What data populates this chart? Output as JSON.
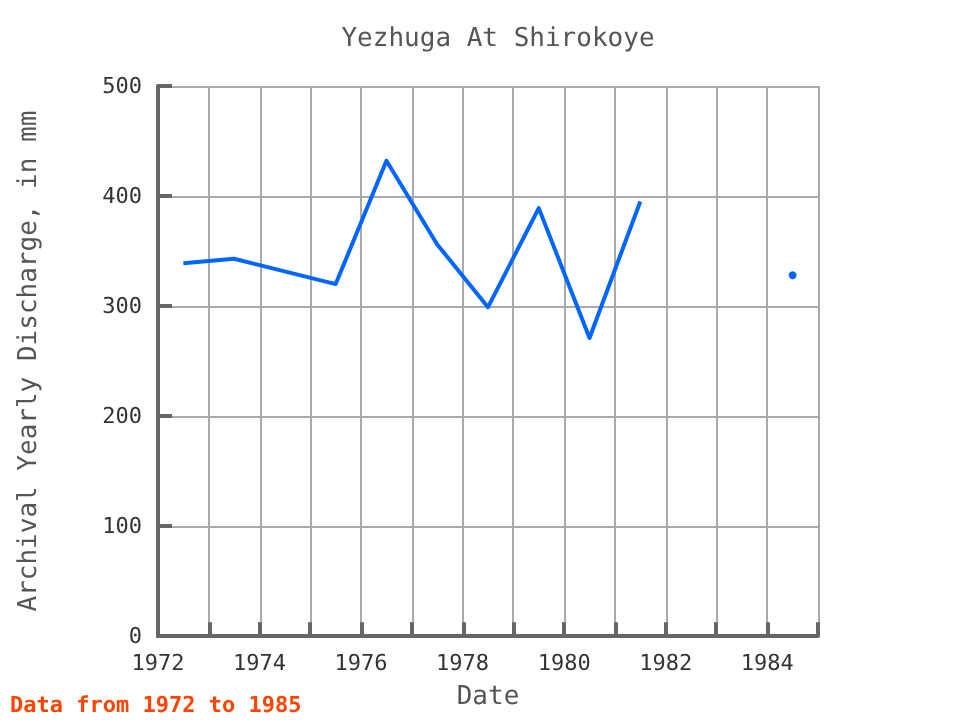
{
  "chart_data": {
    "type": "line",
    "title": "Yezhuga At Shirokoye",
    "xlabel": "Date",
    "ylabel": "Archival Yearly Discharge, in mm",
    "x": [
      1972.5,
      1973.5,
      1975.5,
      1976.5,
      1977.5,
      1978.5,
      1979.5,
      1980.5,
      1981.5,
      1982.5,
      1983.5,
      1984.5
    ],
    "series": [
      {
        "color": "#0066ff",
        "values": [
          339,
          343,
          320,
          432,
          356,
          299,
          389,
          271,
          395,
          null,
          null,
          328
        ]
      }
    ],
    "xlim": [
      1972,
      1985
    ],
    "xticks": [
      1972,
      {
        "value": 1973,
        "label": null
      },
      1974,
      {
        "value": 1975,
        "label": null
      },
      1976,
      {
        "value": 1977,
        "label": null
      },
      1978,
      {
        "value": 1979,
        "label": null
      },
      1980,
      {
        "value": 1981,
        "label": null
      },
      1982,
      {
        "value": 1983,
        "label": null
      },
      1984,
      {
        "value": 1985,
        "label": null
      }
    ],
    "ylim": [
      0,
      500
    ],
    "yticks": [
      0,
      100,
      200,
      300,
      400,
      500
    ],
    "grid": true,
    "marker": "none",
    "line_style": "solid",
    "annotations": [
      "Data from 1972 to 1985"
    ]
  }
}
